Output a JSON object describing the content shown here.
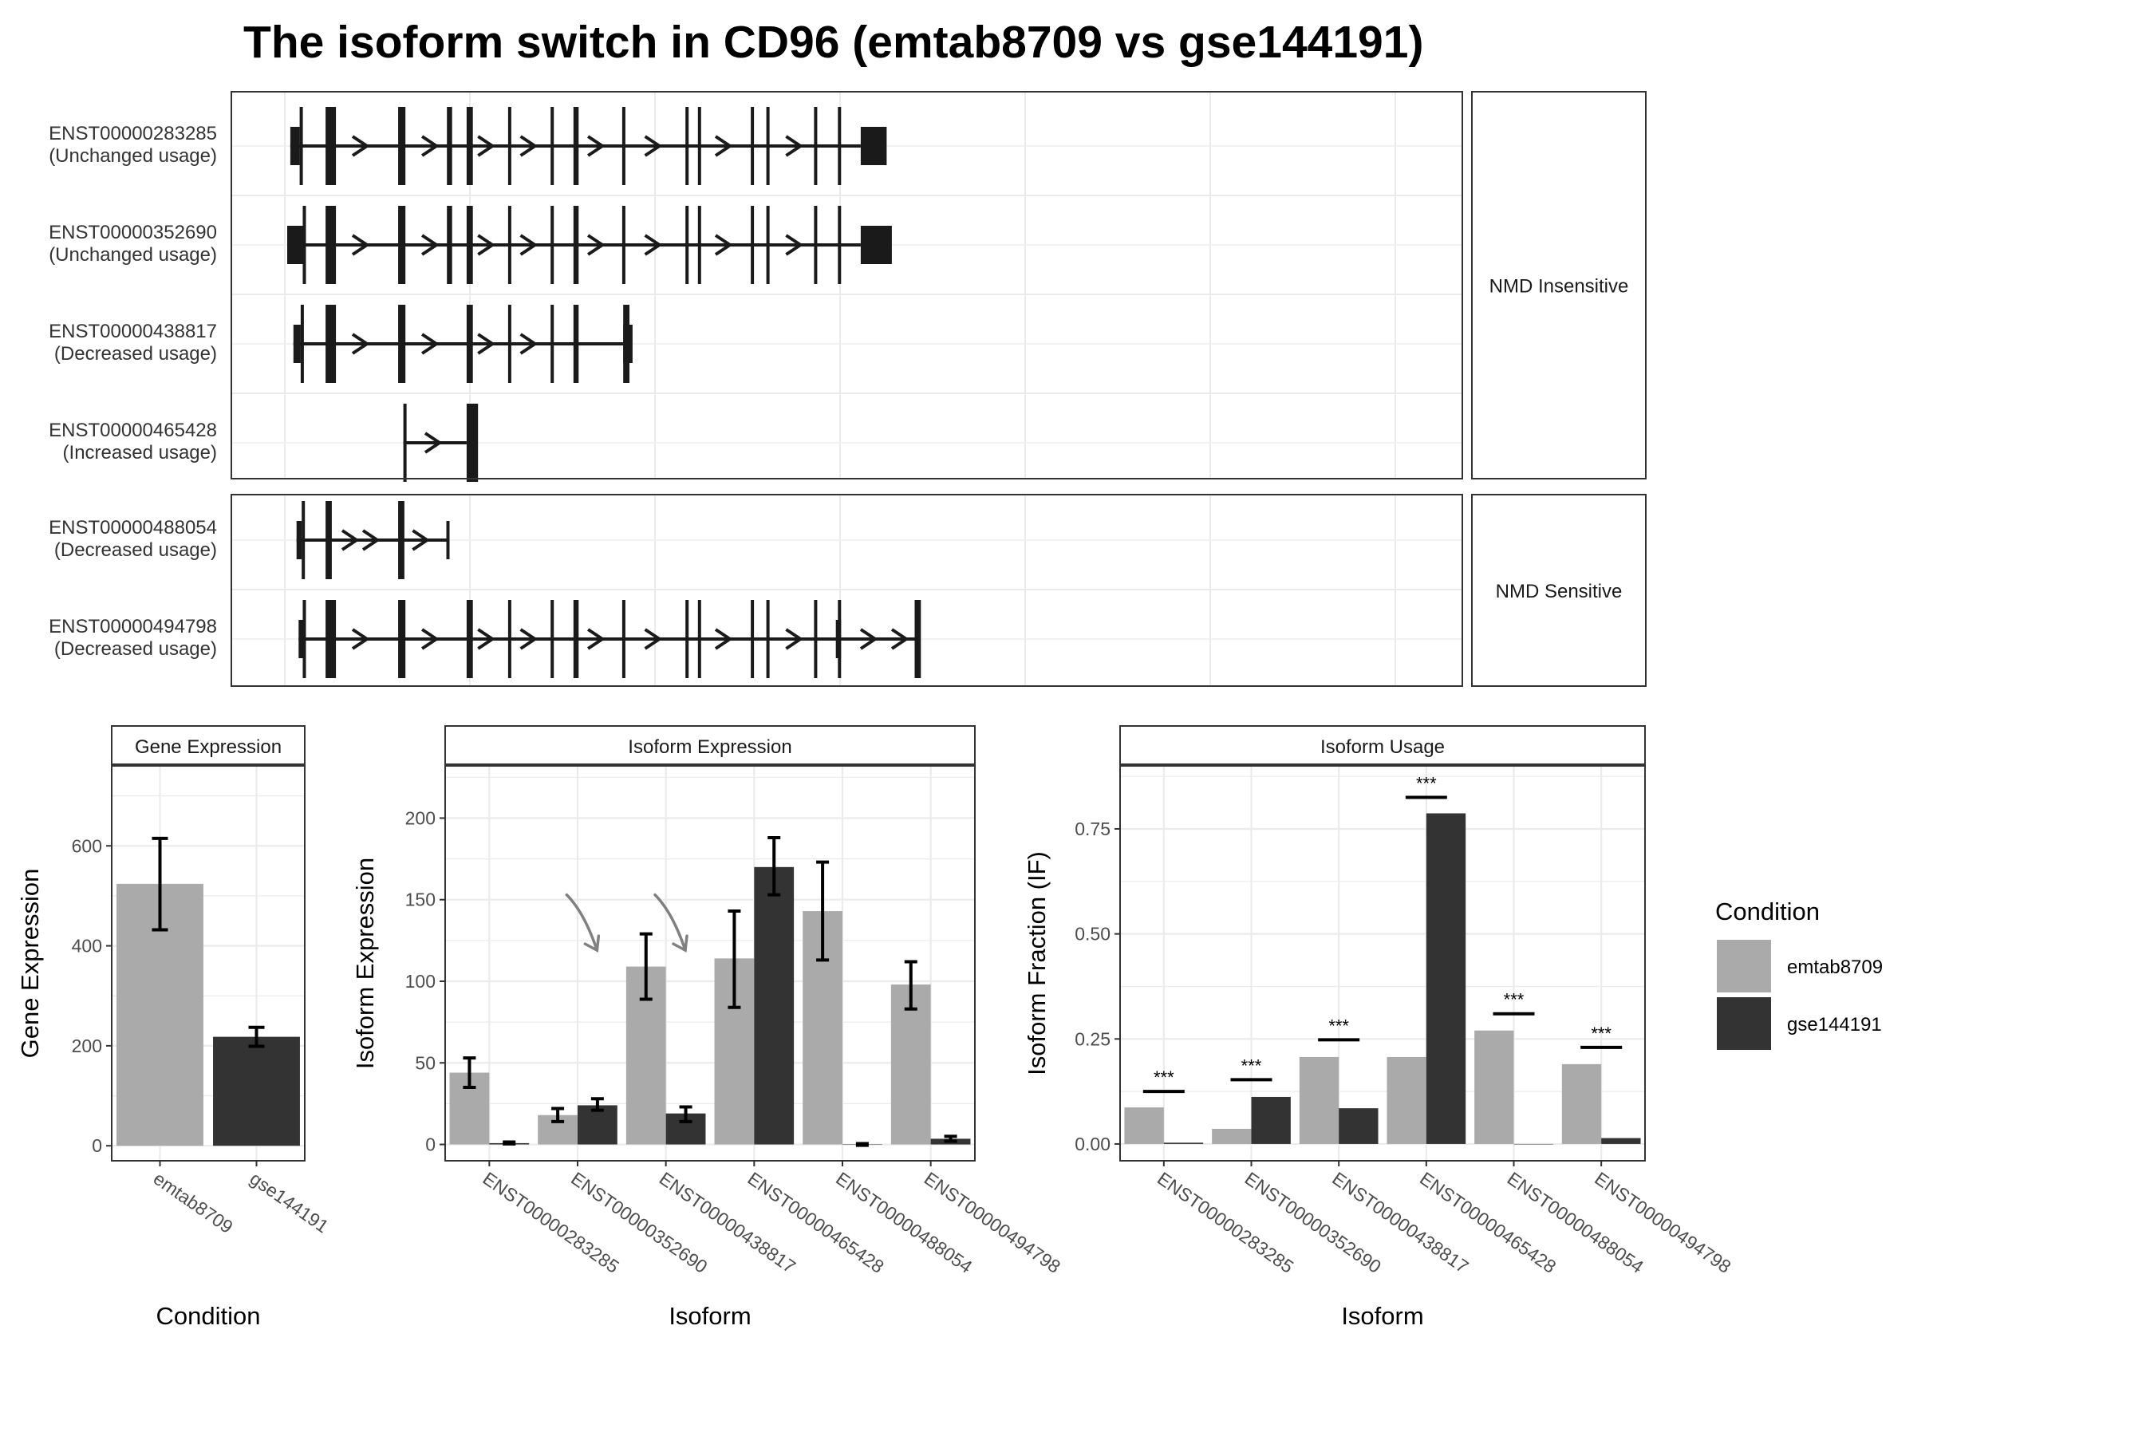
{
  "title": "The isoform switch in CD96 (emtab8709 vs gse144191)",
  "colors": {
    "emtab8709": "#aaaaaa",
    "gse144191": "#333333",
    "structure": "#1a1a1a",
    "grid": "#ebebeb",
    "arrow": "#808080"
  },
  "structure": {
    "groups": [
      {
        "label": "NMD Insensitive",
        "transcripts": [
          {
            "id": "ENST00000283285",
            "usage": "(Unchanged usage)",
            "utr": [
              [
                3,
                12
              ],
              [
                553,
                578
              ]
            ],
            "cds": [
              [
                12,
                15
              ],
              [
                37,
                47
              ],
              [
                107,
                114
              ],
              [
                154,
                159
              ],
              [
                173,
                179
              ],
              [
                213,
                215
              ],
              [
                254,
                257
              ],
              [
                276,
                281
              ],
              [
                323,
                325
              ],
              [
                384,
                386
              ],
              [
                396,
                398
              ],
              [
                447,
                450
              ],
              [
                462,
                465
              ],
              [
                508,
                511
              ],
              [
                531,
                534
              ]
            ],
            "line": [
              3,
              553
            ],
            "arrows": [
              70,
              137,
              191,
              232,
              297,
              352,
              420,
              488
            ]
          },
          {
            "id": "ENST00000352690",
            "usage": "(Unchanged usage)",
            "utr": [
              [
                0,
                15
              ],
              [
                553,
                583
              ]
            ],
            "cds": [
              [
                15,
                15.1
              ],
              [
                37,
                47
              ],
              [
                107,
                114
              ],
              [
                154,
                159
              ],
              [
                173,
                179
              ],
              [
                213,
                215
              ],
              [
                254,
                257
              ],
              [
                276,
                281
              ],
              [
                323,
                325
              ],
              [
                384,
                386
              ],
              [
                396,
                398
              ],
              [
                447,
                450
              ],
              [
                462,
                465
              ],
              [
                508,
                511
              ],
              [
                531,
                534
              ]
            ],
            "line": [
              0,
              553
            ],
            "arrows": [
              70,
              137,
              191,
              232,
              297,
              352,
              420,
              488
            ]
          },
          {
            "id": "ENST00000438817",
            "usage": "(Decreased usage)",
            "utr": [
              [
                6,
                13
              ],
              [
                324,
                333
              ]
            ],
            "cds": [
              [
                13,
                15
              ],
              [
                37,
                47
              ],
              [
                107,
                114
              ],
              [
                173,
                179
              ],
              [
                213,
                215
              ],
              [
                254,
                257
              ],
              [
                276,
                281
              ],
              [
                324,
                330
              ]
            ],
            "line": [
              6,
              324
            ],
            "arrows": [
              70,
              137,
              191,
              232
            ]
          },
          {
            "id": "ENST00000465428",
            "usage": "(Increased usage)",
            "utr": [],
            "cds": [
              [
                112,
                114
              ],
              [
                173,
                184
              ]
            ],
            "line": [
              112,
              173
            ],
            "arrows": [
              140
            ]
          }
        ]
      },
      {
        "label": "NMD Sensitive",
        "transcripts": [
          {
            "id": "ENST00000488054",
            "usage": "(Decreased usage)",
            "utr": [
              [
                9,
                14
              ]
            ],
            "cds": [
              [
                14,
                16
              ],
              [
                37,
                43
              ],
              [
                107,
                113
              ]
            ],
            "line": [
              9,
              155
            ],
            "end_mark": 155,
            "arrows": [
              60,
              80,
              128
            ]
          },
          {
            "id": "ENST00000494798",
            "usage": "(Decreased usage)",
            "utr": [
              [
                11,
                15
              ],
              [
                529,
                534
              ]
            ],
            "cds": [
              [
                15,
                17
              ],
              [
                37,
                47
              ],
              [
                107,
                114
              ],
              [
                173,
                179
              ],
              [
                213,
                215
              ],
              [
                254,
                257
              ],
              [
                276,
                281
              ],
              [
                323,
                325
              ],
              [
                384,
                386
              ],
              [
                396,
                398
              ],
              [
                447,
                450
              ],
              [
                462,
                465
              ],
              [
                508,
                511
              ],
              [
                531,
                534
              ],
              [
                605,
                611
              ]
            ],
            "line": [
              11,
              605
            ],
            "arrows": [
              70,
              137,
              191,
              232,
              297,
              352,
              420,
              488,
              560,
              590
            ]
          }
        ]
      }
    ]
  },
  "chart_data": [
    {
      "type": "bar",
      "title": "Gene Expression",
      "xlabel": "Condition",
      "ylabel": "Gene Expression",
      "ylim": [
        -30,
        760
      ],
      "yticks": [
        0,
        200,
        400,
        600
      ],
      "categories": [
        "emtab8709",
        "gse144191"
      ],
      "values": [
        524,
        218
      ],
      "errors": [
        [
          432,
          615
        ],
        [
          199,
          237
        ]
      ]
    },
    {
      "type": "bar",
      "title": "Isoform Expression",
      "xlabel": "Isoform",
      "ylabel": "Isoform Expression",
      "ylim": [
        -10,
        232
      ],
      "yticks": [
        0,
        50,
        100,
        150,
        200
      ],
      "categories": [
        "ENST00000283285",
        "ENST00000352690",
        "ENST00000438817",
        "ENST00000465428",
        "ENST00000488054",
        "ENST00000494798"
      ],
      "series": [
        {
          "name": "emtab8709",
          "values": [
            44,
            18,
            109,
            114,
            143,
            98
          ],
          "errors": [
            [
              35,
              53
            ],
            [
              14,
              22
            ],
            [
              89,
              129
            ],
            [
              84,
              143
            ],
            [
              113,
              173
            ],
            [
              83,
              112
            ]
          ]
        },
        {
          "name": "gse144191",
          "values": [
            0.8,
            24,
            19,
            170,
            0,
            3.5
          ],
          "errors": [
            [
              0.3,
              1.5
            ],
            [
              21,
              28
            ],
            [
              14,
              23
            ],
            [
              153,
              188
            ],
            [
              -0.5,
              0.5
            ],
            [
              2,
              5
            ]
          ]
        }
      ],
      "annotations": [
        {
          "type": "arrow",
          "category": 2
        },
        {
          "type": "arrow",
          "category": 3
        }
      ]
    },
    {
      "type": "bar",
      "title": "Isoform Usage",
      "xlabel": "Isoform",
      "ylabel": "Isoform Fraction (IF)",
      "ylim": [
        -0.04,
        0.9
      ],
      "yticks": [
        0,
        0.25,
        0.5,
        0.75
      ],
      "ytick_labels": [
        "0.00",
        "0.25",
        "0.50",
        "0.75"
      ],
      "categories": [
        "ENST00000283285",
        "ENST00000352690",
        "ENST00000438817",
        "ENST00000465428",
        "ENST00000488054",
        "ENST00000494798"
      ],
      "series": [
        {
          "name": "emtab8709",
          "values": [
            0.087,
            0.036,
            0.207,
            0.207,
            0.27,
            0.19
          ]
        },
        {
          "name": "gse144191",
          "values": [
            0.003,
            0.112,
            0.085,
            0.787,
            0.0,
            0.014
          ]
        }
      ],
      "significance": [
        {
          "label": "***",
          "y": 0.125
        },
        {
          "label": "***",
          "y": 0.153
        },
        {
          "label": "***",
          "y": 0.248
        },
        {
          "label": "***",
          "y": 0.825
        },
        {
          "label": "***",
          "y": 0.31
        },
        {
          "label": "***",
          "y": 0.23
        }
      ]
    }
  ],
  "legend": {
    "title": "Condition",
    "items": [
      {
        "label": "emtab8709",
        "color": "#aaaaaa"
      },
      {
        "label": "gse144191",
        "color": "#333333"
      }
    ]
  }
}
